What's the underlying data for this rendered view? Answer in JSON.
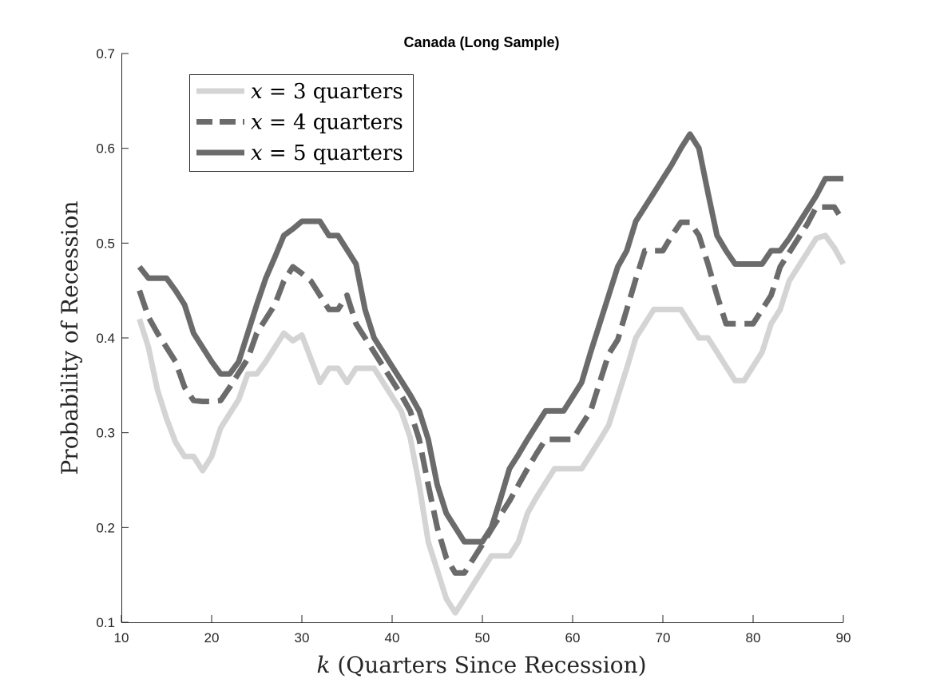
{
  "chart_data": {
    "type": "line",
    "title": "Canada (Long Sample)",
    "xlabel": "k (Quarters Since Recession)",
    "ylabel": "Probability of Recession",
    "xlim": [
      10,
      90
    ],
    "ylim": [
      0.1,
      0.7
    ],
    "xticks": [
      10,
      20,
      30,
      40,
      50,
      60,
      70,
      80,
      90
    ],
    "yticks": [
      0.1,
      0.2,
      0.3,
      0.4,
      0.5,
      0.6,
      0.7
    ],
    "grid": false,
    "legend_position": "top-left",
    "x": [
      12,
      13,
      14,
      15,
      16,
      17,
      18,
      19,
      20,
      21,
      22,
      23,
      24,
      25,
      26,
      27,
      28,
      29,
      30,
      31,
      32,
      33,
      34,
      35,
      36,
      37,
      38,
      39,
      40,
      41,
      42,
      43,
      44,
      45,
      46,
      47,
      48,
      49,
      50,
      51,
      52,
      53,
      54,
      55,
      56,
      57,
      58,
      59,
      60,
      61,
      62,
      63,
      64,
      65,
      66,
      67,
      68,
      69,
      70,
      71,
      72,
      73,
      74,
      75,
      76,
      77,
      78,
      79,
      80,
      81,
      82,
      83,
      84,
      85,
      86,
      87,
      88,
      89,
      90
    ],
    "series": [
      {
        "name": "x = 3 quarters",
        "style": "solid",
        "color": "#d4d4d4",
        "values": [
          0.42,
          0.39,
          0.345,
          0.315,
          0.29,
          0.275,
          0.275,
          0.26,
          0.275,
          0.305,
          0.32,
          0.335,
          0.362,
          0.362,
          0.375,
          0.39,
          0.405,
          0.397,
          0.403,
          0.378,
          0.353,
          0.368,
          0.368,
          0.353,
          0.368,
          0.368,
          0.368,
          0.353,
          0.338,
          0.323,
          0.295,
          0.245,
          0.185,
          0.155,
          0.125,
          0.11,
          0.125,
          0.14,
          0.155,
          0.17,
          0.17,
          0.17,
          0.185,
          0.215,
          0.232,
          0.247,
          0.262,
          0.262,
          0.262,
          0.262,
          0.277,
          0.292,
          0.308,
          0.338,
          0.368,
          0.4,
          0.415,
          0.43,
          0.43,
          0.43,
          0.43,
          0.415,
          0.4,
          0.4,
          0.385,
          0.37,
          0.355,
          0.355,
          0.37,
          0.385,
          0.415,
          0.43,
          0.46,
          0.475,
          0.49,
          0.505,
          0.508,
          0.495,
          0.478
        ]
      },
      {
        "name": "x = 4 quarters",
        "style": "dashed",
        "color": "#6b6b6b",
        "values": [
          0.45,
          0.422,
          0.405,
          0.39,
          0.375,
          0.348,
          0.334,
          0.333,
          0.333,
          0.334,
          0.348,
          0.363,
          0.378,
          0.405,
          0.42,
          0.435,
          0.46,
          0.475,
          0.468,
          0.46,
          0.445,
          0.43,
          0.43,
          0.445,
          0.415,
          0.4,
          0.385,
          0.37,
          0.355,
          0.34,
          0.323,
          0.293,
          0.245,
          0.2,
          0.168,
          0.152,
          0.152,
          0.167,
          0.182,
          0.198,
          0.213,
          0.228,
          0.245,
          0.262,
          0.278,
          0.293,
          0.293,
          0.293,
          0.293,
          0.308,
          0.323,
          0.353,
          0.383,
          0.398,
          0.43,
          0.462,
          0.492,
          0.492,
          0.492,
          0.508,
          0.522,
          0.522,
          0.508,
          0.478,
          0.445,
          0.415,
          0.415,
          0.415,
          0.415,
          0.43,
          0.445,
          0.475,
          0.49,
          0.505,
          0.52,
          0.538,
          0.538,
          0.538,
          0.523
        ]
      },
      {
        "name": "x = 5 quarters",
        "style": "solid",
        "color": "#6b6b6b",
        "values": [
          0.475,
          0.463,
          0.463,
          0.463,
          0.45,
          0.435,
          0.405,
          0.39,
          0.375,
          0.362,
          0.362,
          0.375,
          0.405,
          0.435,
          0.463,
          0.485,
          0.508,
          0.515,
          0.523,
          0.523,
          0.523,
          0.508,
          0.508,
          0.493,
          0.478,
          0.43,
          0.4,
          0.385,
          0.37,
          0.355,
          0.34,
          0.323,
          0.293,
          0.245,
          0.215,
          0.2,
          0.185,
          0.185,
          0.185,
          0.2,
          0.23,
          0.262,
          0.277,
          0.293,
          0.308,
          0.323,
          0.323,
          0.323,
          0.338,
          0.353,
          0.385,
          0.415,
          0.445,
          0.475,
          0.492,
          0.523,
          0.538,
          0.553,
          0.568,
          0.583,
          0.6,
          0.615,
          0.6,
          0.553,
          0.508,
          0.492,
          0.478,
          0.478,
          0.478,
          0.478,
          0.492,
          0.492,
          0.505,
          0.52,
          0.535,
          0.55,
          0.568,
          0.568,
          0.568
        ]
      }
    ]
  },
  "legend": {
    "items": [
      {
        "variable": "x",
        "eq": " = ",
        "value": "3",
        "unit": " quarters"
      },
      {
        "variable": "x",
        "eq": " = ",
        "value": "4",
        "unit": " quarters"
      },
      {
        "variable": "x",
        "eq": " = ",
        "value": "5",
        "unit": " quarters"
      }
    ]
  },
  "axis_label_parts": {
    "x_variable": "k",
    "x_rest": " (Quarters Since Recession)"
  }
}
